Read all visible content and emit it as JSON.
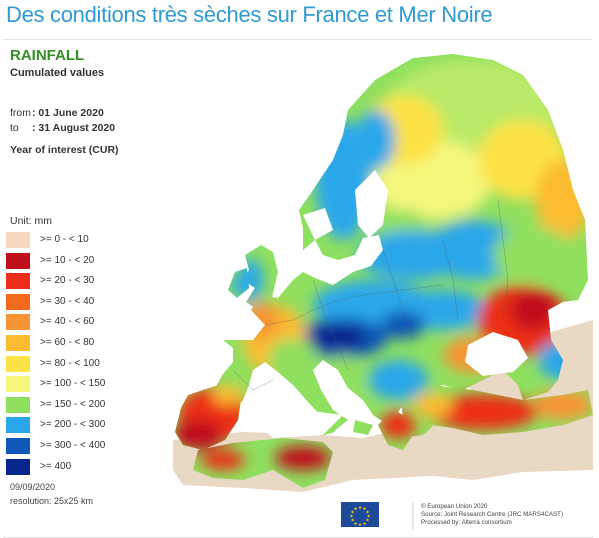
{
  "title": "Des conditions très sèches sur France et Mer Noire",
  "map": {
    "heading": "RAINFALL",
    "subheading": "Cumulated values",
    "from_label": "from",
    "from_date": ": 01 June 2020",
    "to_label": "to",
    "to_date": ": 31 August 2020",
    "year_label": "Year of interest (CUR)",
    "unit": "Unit: mm",
    "legend": [
      {
        "label": ">= 0 - < 10",
        "color": "#f6d9bd"
      },
      {
        "label": ">= 10 - < 20",
        "color": "#c00d1a"
      },
      {
        "label": ">= 20 - < 30",
        "color": "#ec2d19"
      },
      {
        "label": ">= 30 - < 40",
        "color": "#f26a1d"
      },
      {
        "label": ">= 40 - < 60",
        "color": "#f79434"
      },
      {
        "label": ">= 60 - < 80",
        "color": "#fbbc32"
      },
      {
        "label": ">= 80 - < 100",
        "color": "#fde245"
      },
      {
        "label": ">= 100 - < 150",
        "color": "#f5f77d"
      },
      {
        "label": ">= 150 - < 200",
        "color": "#8fe05f"
      },
      {
        "label": ">= 200 - < 300",
        "color": "#2aa7ea"
      },
      {
        "label": ">= 300 - < 400",
        "color": "#1157b8"
      },
      {
        "label": ">= 400",
        "color": "#08248d"
      }
    ],
    "footer_date": "09/09/2020",
    "footer_resolution": "resolution: 25x25 km",
    "credit_1": "© European Union 2020",
    "credit_2": "Source: Joint Research Centre (JRC MARS4CAST)",
    "credit_3": "Processed by: Alterra consortium",
    "colors": {
      "title": "#2f9bd2",
      "heading": "#2f8f23",
      "outside_land": "#e8d8c4",
      "sea": "#ffffff",
      "eu_flag": "#1e4a9c"
    }
  }
}
